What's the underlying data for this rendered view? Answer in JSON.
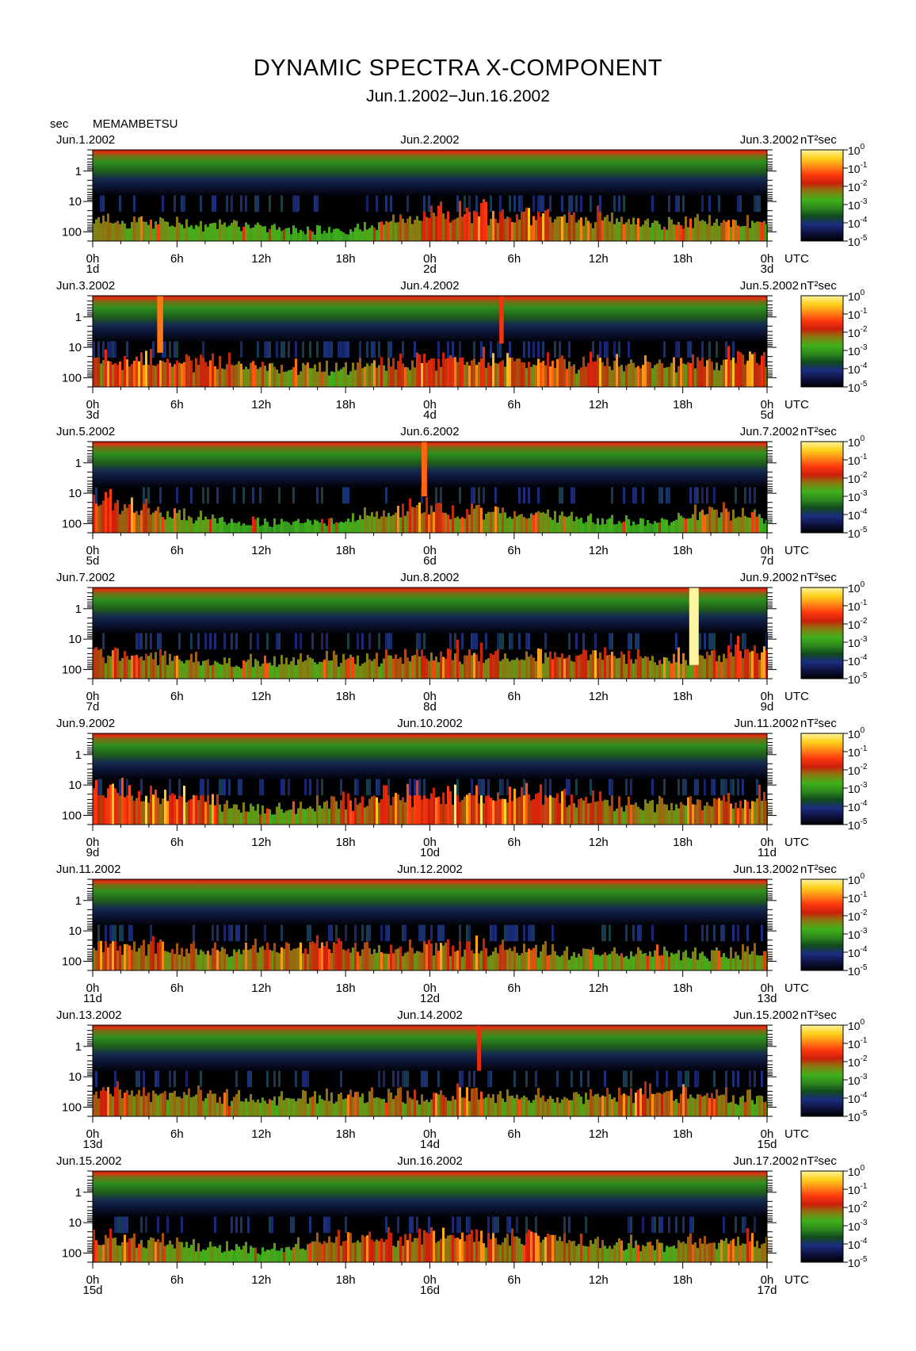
{
  "title": "DYNAMIC SPECTRA X-COMPONENT",
  "subtitle": "Jun.1.2002−Jun.16.2002",
  "station_block": {
    "yunit": "sec",
    "station": "MEMAMBETSU"
  },
  "colorbar": {
    "unit": "nT²sec",
    "base": "10",
    "exponents": [
      "0",
      "-1",
      "-2",
      "-3",
      "-4",
      "-5"
    ]
  },
  "time_unit": "UTC",
  "chart_data": {
    "type": "heatmap",
    "description_axes": "x: time (hours UTC), y: period (sec, log scale, reversed), color: power spectral density",
    "ytick_labels": [
      "1",
      "10",
      "100"
    ],
    "yticks": [
      1,
      10,
      100
    ],
    "ylim_sec": [
      0.2,
      200
    ],
    "xtick_labels": [
      "0h",
      "6h",
      "12h",
      "18h",
      "0h",
      "6h",
      "12h",
      "18h",
      "0h"
    ],
    "color_scale": [
      "#000000",
      "#0d1240",
      "#1b2d80",
      "#124a1d",
      "#2d8a1e",
      "#3fb01b",
      "#8a7a12",
      "#cc1e0a",
      "#ff3a10",
      "#ff8a14",
      "#ffd21e",
      "#fff4a0"
    ],
    "color_range_log10": [
      -5,
      0
    ],
    "panels": [
      {
        "date_left": "Jun.1.2002",
        "date_mid": "Jun.2.2002",
        "date_right": "Jun.3.2002",
        "day_left": "1d",
        "day_mid": "2d",
        "day_right": "3d",
        "activity": [
          0.55,
          0.6,
          0.55,
          0.5,
          0.45,
          0.4,
          0.35,
          0.3,
          0.5,
          0.7,
          0.85,
          0.9,
          0.85,
          0.75,
          0.7,
          0.65,
          0.5,
          0.55,
          0.6,
          0.55
        ],
        "bursts": []
      },
      {
        "date_left": "Jun.3.2002",
        "date_mid": "Jun.4.2002",
        "date_right": "Jun.5.2002",
        "day_left": "3d",
        "day_mid": "4d",
        "day_right": "5d",
        "activity": [
          0.8,
          0.85,
          0.8,
          0.75,
          0.7,
          0.65,
          0.55,
          0.5,
          0.7,
          0.8,
          0.85,
          0.8,
          0.75,
          0.7,
          0.75,
          0.7,
          0.65,
          0.75,
          0.85,
          0.85
        ],
        "bursts": [
          {
            "hour": 4.8,
            "strength": 0.55
          },
          {
            "hour": 29.1,
            "strength": 0.35
          }
        ]
      },
      {
        "date_left": "Jun.5.2002",
        "date_mid": "Jun.6.2002",
        "date_right": "Jun.7.2002",
        "day_left": "5d",
        "day_mid": "6d",
        "day_right": "7d",
        "activity": [
          0.95,
          0.9,
          0.55,
          0.45,
          0.35,
          0.3,
          0.35,
          0.4,
          0.6,
          0.75,
          0.7,
          0.65,
          0.6,
          0.5,
          0.4,
          0.35,
          0.3,
          0.6,
          0.65,
          0.4
        ],
        "bursts": [
          {
            "hour": 23.6,
            "strength": 0.5
          }
        ]
      },
      {
        "date_left": "Jun.7.2002",
        "date_mid": "Jun.8.2002",
        "date_right": "Jun.9.2002",
        "day_left": "7d",
        "day_mid": "8d",
        "day_right": "9d",
        "activity": [
          0.7,
          0.75,
          0.7,
          0.6,
          0.55,
          0.5,
          0.55,
          0.6,
          0.6,
          0.7,
          0.8,
          0.8,
          0.7,
          0.75,
          0.8,
          0.7,
          0.65,
          0.6,
          0.9,
          0.9
        ],
        "bursts": [
          {
            "hour": 42.8,
            "strength": 1.0
          }
        ]
      },
      {
        "date_left": "Jun.9.2002",
        "date_mid": "Jun.10.2002",
        "date_right": "Jun.11.2002",
        "day_left": "9d",
        "day_mid": "10d",
        "day_right": "11d",
        "activity": [
          0.95,
          0.95,
          0.9,
          0.85,
          0.5,
          0.45,
          0.55,
          0.7,
          0.85,
          0.95,
          1.0,
          1.0,
          0.95,
          0.95,
          0.7,
          0.6,
          0.55,
          0.65,
          0.75,
          0.8
        ],
        "bursts": []
      },
      {
        "date_left": "Jun.11.2002",
        "date_mid": "Jun.12.2002",
        "date_right": "Jun.13.2002",
        "day_left": "11d",
        "day_mid": "12d",
        "day_right": "13d",
        "activity": [
          0.8,
          0.75,
          0.7,
          0.65,
          0.6,
          0.7,
          0.75,
          0.75,
          0.7,
          0.7,
          0.75,
          0.7,
          0.65,
          0.6,
          0.55,
          0.55,
          0.5,
          0.5,
          0.55,
          0.6
        ],
        "bursts": []
      },
      {
        "date_left": "Jun.13.2002",
        "date_mid": "Jun.14.2002",
        "date_right": "Jun.15.2002",
        "day_left": "13d",
        "day_mid": "14d",
        "day_right": "15d",
        "activity": [
          0.7,
          0.75,
          0.65,
          0.6,
          0.55,
          0.5,
          0.55,
          0.6,
          0.6,
          0.65,
          0.7,
          0.65,
          0.6,
          0.55,
          0.6,
          0.75,
          0.7,
          0.7,
          0.6,
          0.55
        ],
        "bursts": [
          {
            "hour": 27.5,
            "strength": 0.3
          }
        ]
      },
      {
        "date_left": "Jun.15.2002",
        "date_mid": "Jun.16.2002",
        "date_right": "Jun.17.2002",
        "day_left": "15d",
        "day_mid": "16d",
        "day_right": "17d",
        "activity": [
          0.75,
          0.7,
          0.6,
          0.5,
          0.45,
          0.4,
          0.55,
          0.7,
          0.75,
          0.75,
          0.8,
          0.75,
          0.75,
          0.7,
          0.6,
          0.55,
          0.55,
          0.6,
          0.7,
          0.7
        ],
        "bursts": []
      }
    ]
  }
}
